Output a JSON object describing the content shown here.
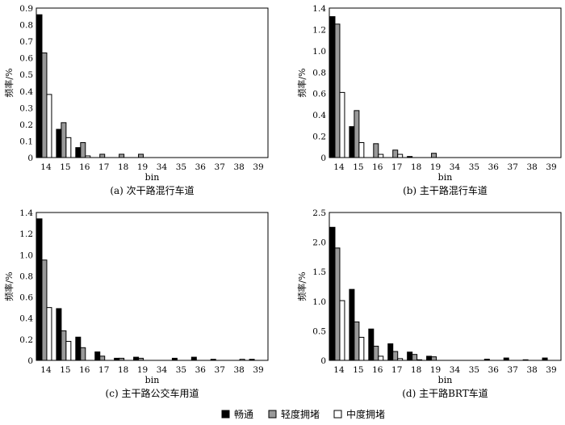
{
  "chart_data": [
    {
      "type": "bar",
      "caption": "(a) 次干路混行车道",
      "xlabel": "bin",
      "ylabel": "频率/%",
      "categories": [
        "14",
        "15",
        "16",
        "17",
        "18",
        "19",
        "34",
        "35",
        "36",
        "37",
        "38",
        "39"
      ],
      "ylim": [
        0,
        0.9
      ],
      "yticks": [
        "0",
        "0.1",
        "0.2",
        "0.3",
        "0.4",
        "0.5",
        "0.6",
        "0.7",
        "0.8",
        "0.9"
      ],
      "series": [
        {
          "name": "畅通",
          "values": [
            0.86,
            0.17,
            0.06,
            0,
            0,
            0,
            0,
            0,
            0,
            0,
            0,
            0
          ]
        },
        {
          "name": "轻度拥堵",
          "values": [
            0.63,
            0.21,
            0.09,
            0.02,
            0.02,
            0.02,
            0,
            0,
            0,
            0,
            0,
            0
          ]
        },
        {
          "name": "中度拥堵",
          "values": [
            0.38,
            0.12,
            0.01,
            0,
            0,
            0,
            0,
            0,
            0,
            0,
            0,
            0
          ]
        }
      ]
    },
    {
      "type": "bar",
      "caption": "(b) 主干路混行车道",
      "xlabel": "bin",
      "ylabel": "频率/%",
      "categories": [
        "14",
        "15",
        "16",
        "17",
        "18",
        "19",
        "34",
        "35",
        "36",
        "37",
        "38",
        "39"
      ],
      "ylim": [
        0,
        1.4
      ],
      "yticks": [
        "0",
        "0.2",
        "0.4",
        "0.6",
        "0.8",
        "1.0",
        "1.2",
        "1.4"
      ],
      "series": [
        {
          "name": "畅通",
          "values": [
            1.32,
            0.29,
            0,
            0,
            0.01,
            0,
            0,
            0,
            0,
            0,
            0,
            0
          ]
        },
        {
          "name": "轻度拥堵",
          "values": [
            1.25,
            0.44,
            0.13,
            0.07,
            0,
            0.04,
            0,
            0,
            0,
            0,
            0,
            0
          ]
        },
        {
          "name": "中度拥堵",
          "values": [
            0.61,
            0.14,
            0.03,
            0.03,
            0,
            0,
            0,
            0,
            0,
            0,
            0,
            0
          ]
        }
      ]
    },
    {
      "type": "bar",
      "caption": "(c) 主干路公交车用道",
      "xlabel": "bin",
      "ylabel": "频率/%",
      "categories": [
        "14",
        "15",
        "16",
        "17",
        "18",
        "19",
        "34",
        "35",
        "36",
        "37",
        "38",
        "39"
      ],
      "ylim": [
        0,
        1.4
      ],
      "yticks": [
        "0",
        "0.2",
        "0.4",
        "0.6",
        "0.8",
        "1.0",
        "1.2",
        "1.4"
      ],
      "series": [
        {
          "name": "畅通",
          "values": [
            1.34,
            0.49,
            0.22,
            0.08,
            0.02,
            0.03,
            0,
            0.02,
            0.03,
            0.01,
            0,
            0.01
          ]
        },
        {
          "name": "轻度拥堵",
          "values": [
            0.95,
            0.28,
            0.12,
            0.04,
            0.02,
            0.02,
            0,
            0,
            0,
            0,
            0,
            0
          ]
        },
        {
          "name": "中度拥堵",
          "values": [
            0.5,
            0.18,
            0,
            0,
            0,
            0,
            0,
            0,
            0,
            0,
            0.01,
            0
          ]
        }
      ]
    },
    {
      "type": "bar",
      "caption": "(d) 主干路BRT车道",
      "xlabel": "bin",
      "ylabel": "频率/%",
      "categories": [
        "14",
        "15",
        "16",
        "17",
        "18",
        "19",
        "34",
        "35",
        "36",
        "37",
        "38",
        "39"
      ],
      "ylim": [
        0,
        2.5
      ],
      "yticks": [
        "0",
        "0.5",
        "1.0",
        "1.5",
        "2.0",
        "2.5"
      ],
      "series": [
        {
          "name": "畅通",
          "values": [
            2.25,
            1.2,
            0.53,
            0.28,
            0.14,
            0.07,
            0,
            0,
            0.02,
            0.04,
            0.01,
            0.04
          ]
        },
        {
          "name": "轻度拥堵",
          "values": [
            1.9,
            0.65,
            0.24,
            0.15,
            0.1,
            0.06,
            0,
            0,
            0,
            0,
            0,
            0
          ]
        },
        {
          "name": "中度拥堵",
          "values": [
            1.01,
            0.39,
            0.07,
            0.03,
            0.01,
            0,
            0,
            0,
            0,
            0,
            0,
            0
          ]
        }
      ]
    }
  ],
  "legend": {
    "placement": "bottom-center",
    "items": [
      {
        "name": "畅通",
        "color": "#000000"
      },
      {
        "name": "轻度拥堵",
        "color": "#999999"
      },
      {
        "name": "中度拥堵",
        "color": "#ffffff"
      }
    ]
  },
  "colors": {
    "series": [
      "#000000",
      "#999999",
      "#ffffff"
    ],
    "stroke": "#000000"
  }
}
